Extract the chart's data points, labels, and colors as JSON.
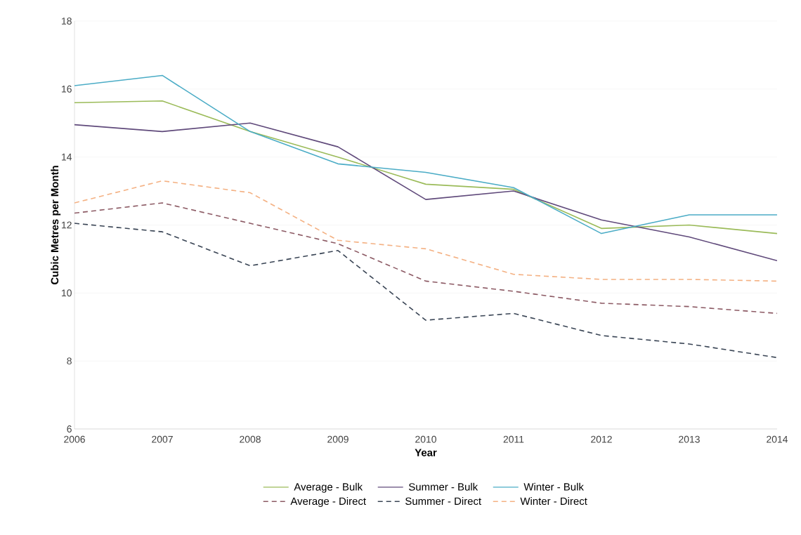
{
  "chart_data": {
    "type": "line",
    "xlabel": "Year",
    "ylabel": "Cubic Metres per Month",
    "x": [
      2006,
      2007,
      2008,
      2009,
      2010,
      2011,
      2012,
      2013,
      2014
    ],
    "xlim": [
      2006,
      2014
    ],
    "xticks": [
      2006,
      2007,
      2008,
      2009,
      2010,
      2011,
      2012,
      2013,
      2014
    ],
    "ylim": [
      6,
      18
    ],
    "yticks": [
      6,
      8,
      10,
      12,
      14,
      16,
      18
    ],
    "grid": "y",
    "legend": "bottom",
    "series": [
      {
        "name": "Average - Bulk",
        "color": "#9bbb59",
        "line_style": "solid",
        "values": [
          15.6,
          15.65,
          14.75,
          14.0,
          13.2,
          13.05,
          11.9,
          12.0,
          11.75
        ]
      },
      {
        "name": "Summer - Bulk",
        "color": "#604a7b",
        "line_style": "solid",
        "values": [
          14.95,
          14.75,
          15.0,
          14.3,
          12.75,
          13.0,
          12.15,
          11.65,
          10.95
        ]
      },
      {
        "name": "Winter - Bulk",
        "color": "#4bacc6",
        "line_style": "solid",
        "values": [
          16.1,
          16.4,
          14.75,
          13.8,
          13.55,
          13.1,
          11.75,
          12.3,
          12.3
        ]
      },
      {
        "name": "Average - Direct",
        "color": "#8c5a64",
        "line_style": "dashed",
        "values": [
          12.35,
          12.65,
          12.05,
          11.45,
          10.35,
          10.05,
          9.7,
          9.6,
          9.4
        ]
      },
      {
        "name": "Summer - Direct",
        "color": "#3a4555",
        "line_style": "dashed",
        "values": [
          12.05,
          11.8,
          10.8,
          11.25,
          9.2,
          9.4,
          8.75,
          8.5,
          8.1
        ]
      },
      {
        "name": "Winter - Direct",
        "color": "#f4b183",
        "line_style": "dashed",
        "values": [
          12.65,
          13.3,
          12.95,
          11.55,
          11.3,
          10.55,
          10.4,
          10.4,
          10.35
        ]
      }
    ]
  }
}
